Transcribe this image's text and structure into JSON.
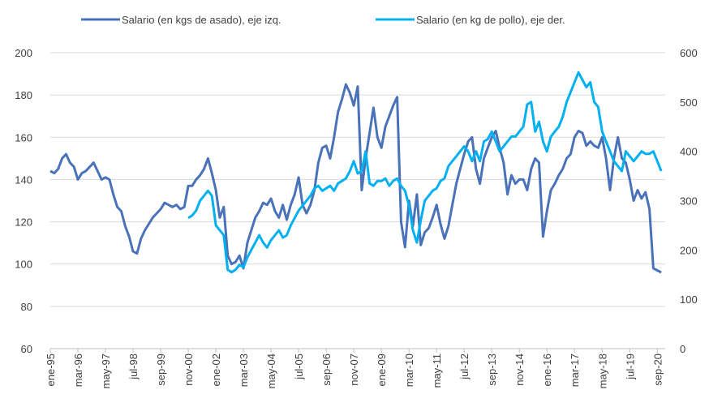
{
  "chart_data": {
    "type": "line",
    "categories": [
      "ene-95",
      null,
      null,
      null,
      null,
      null,
      null,
      "mar-96",
      null,
      null,
      null,
      null,
      null,
      null,
      "may-97",
      null,
      null,
      null,
      null,
      null,
      null,
      "jul-98",
      null,
      null,
      null,
      null,
      null,
      null,
      "sep-99",
      null,
      null,
      null,
      null,
      null,
      null,
      "nov-00",
      null,
      null,
      null,
      null,
      null,
      null,
      "ene-02",
      null,
      null,
      null,
      null,
      null,
      null,
      "mar-03",
      null,
      null,
      null,
      null,
      null,
      null,
      "may-04",
      null,
      null,
      null,
      null,
      null,
      null,
      "jul-05",
      null,
      null,
      null,
      null,
      null,
      null,
      "sep-06",
      null,
      null,
      null,
      null,
      null,
      null,
      "nov-07",
      null,
      null,
      null,
      null,
      null,
      null,
      "ene-09",
      null,
      null,
      null,
      null,
      null,
      null,
      "mar-10",
      null,
      null,
      null,
      null,
      null,
      null,
      "may-11",
      null,
      null,
      null,
      null,
      null,
      null,
      "jul-12",
      null,
      null,
      null,
      null,
      null,
      null,
      "sep-13",
      null,
      null,
      null,
      null,
      null,
      null,
      "nov-14",
      null,
      null,
      null,
      null,
      null,
      null,
      "ene-16",
      null,
      null,
      null,
      null,
      null,
      null,
      "mar-17",
      null,
      null,
      null,
      null,
      null,
      null,
      "may-18",
      null,
      null,
      null,
      null,
      null,
      null,
      "jul-19",
      null,
      null,
      null,
      null,
      null,
      null,
      "sep-20",
      null
    ],
    "series": [
      {
        "name": "Salario (en kgs de asado), eje izq.",
        "color": "#4a72b8",
        "axis": "y",
        "values": [
          144,
          143,
          145,
          150,
          152,
          148,
          146,
          140,
          143,
          144,
          146,
          148,
          144,
          140,
          141,
          140,
          133,
          127,
          125,
          118,
          113,
          106,
          105,
          112,
          116,
          119,
          122,
          124,
          126,
          129,
          128,
          127,
          128,
          126,
          127,
          137,
          137,
          140,
          142,
          145,
          150,
          143,
          135,
          122,
          127,
          104,
          100,
          101,
          104,
          98,
          110,
          116,
          122,
          125,
          129,
          128,
          131,
          125,
          122,
          128,
          121,
          128,
          133,
          141,
          128,
          124,
          128,
          135,
          148,
          155,
          156,
          150,
          160,
          172,
          178,
          185,
          181,
          175,
          184,
          135,
          150,
          162,
          174,
          160,
          155,
          165,
          170,
          175,
          179,
          120,
          108,
          130,
          118,
          133,
          109,
          115,
          117,
          122,
          128,
          119,
          112,
          118,
          128,
          138,
          145,
          152,
          158,
          160,
          145,
          138,
          150,
          155,
          160,
          163,
          155,
          148,
          133,
          142,
          138,
          140,
          140,
          135,
          145,
          150,
          148,
          113,
          125,
          135,
          138,
          142,
          145,
          150,
          152,
          160,
          163,
          162,
          156,
          158,
          156,
          155,
          160,
          150,
          135,
          150,
          160,
          150,
          148,
          140,
          130,
          135,
          131,
          134,
          126,
          98,
          97,
          96
        ]
      },
      {
        "name": "Salario (en kg de pollo), eje der.",
        "color": "#00b0f0",
        "axis": "y2",
        "values": [
          null,
          null,
          null,
          null,
          null,
          null,
          null,
          null,
          null,
          null,
          null,
          null,
          null,
          null,
          null,
          null,
          null,
          null,
          null,
          null,
          null,
          null,
          null,
          null,
          null,
          null,
          null,
          null,
          null,
          null,
          null,
          null,
          null,
          null,
          null,
          265,
          270,
          280,
          300,
          310,
          320,
          310,
          250,
          240,
          230,
          160,
          155,
          160,
          170,
          165,
          185,
          200,
          215,
          230,
          215,
          205,
          220,
          230,
          240,
          225,
          230,
          250,
          265,
          280,
          290,
          300,
          310,
          325,
          330,
          320,
          325,
          330,
          320,
          335,
          340,
          345,
          360,
          380,
          355,
          360,
          400,
          335,
          330,
          340,
          340,
          345,
          330,
          340,
          345,
          330,
          320,
          290,
          240,
          215,
          260,
          300,
          310,
          320,
          325,
          340,
          345,
          370,
          380,
          390,
          400,
          410,
          400,
          380,
          400,
          380,
          420,
          425,
          440,
          420,
          400,
          410,
          420,
          430,
          430,
          440,
          450,
          495,
          500,
          440,
          460,
          420,
          400,
          430,
          440,
          450,
          470,
          500,
          520,
          540,
          560,
          545,
          530,
          540,
          500,
          490,
          440,
          420,
          400,
          380,
          370,
          360,
          400,
          390,
          380,
          390,
          400,
          395,
          395,
          400,
          380,
          360
        ]
      }
    ],
    "ylim": [
      60,
      200
    ],
    "yticks": [
      60,
      80,
      100,
      120,
      140,
      160,
      180,
      200
    ],
    "y2lim": [
      0,
      600
    ],
    "y2ticks": [
      0,
      100,
      200,
      300,
      400,
      500,
      600
    ],
    "grid": true,
    "legend": "top"
  }
}
